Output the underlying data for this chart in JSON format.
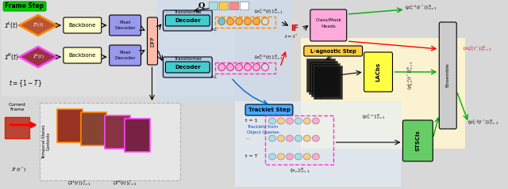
{
  "bg_color": "#d8d8d8",
  "frame_step_label": "Frame Step",
  "frame_step_color": "#00cc00",
  "tracklet_step_label": "Tracklet Step",
  "tracklet_step_color": "#44aaff",
  "q_label": "Q",
  "q_colors": [
    "#aadddd",
    "#ffcc44",
    "#ff8888",
    "#ffffff"
  ],
  "backbone_color": "#ffffcc",
  "pixel_decoder_color": "#9999ee",
  "dfp_color": "#ffbbaa",
  "transformer_decoder_bg": "#b0cce8",
  "transformer_decoder_label_color": "#44cccc",
  "class_mask_color": "#ffaadd",
  "lagnostic_color": "#ffcc44",
  "lacbs_color": "#ffff44",
  "ensemble_color": "#cccccc",
  "stscls_color": "#66cc66",
  "image_upper_border": "#ff8800",
  "image_lower_border": "#ff44ff"
}
